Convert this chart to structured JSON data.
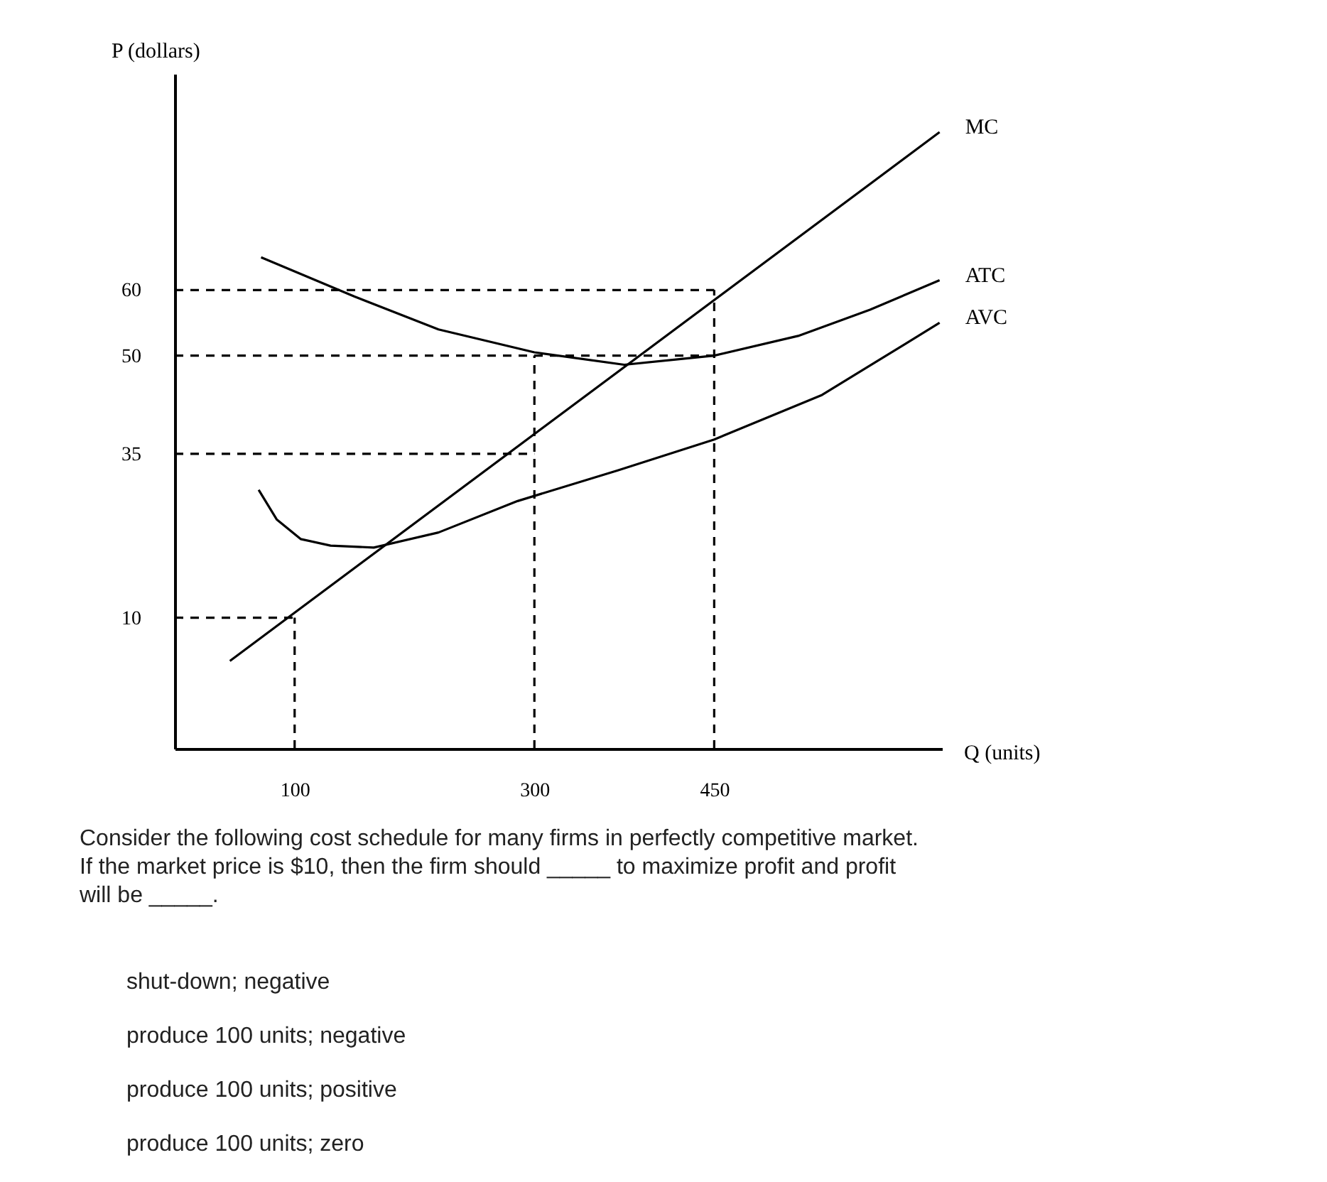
{
  "chart_data": {
    "type": "line",
    "xlabel": "Q (units)",
    "ylabel": "P (dollars)",
    "xlim": [
      0,
      640
    ],
    "ylim": [
      -10,
      93
    ],
    "xticks": [
      100,
      300,
      450
    ],
    "yticks": [
      10,
      35,
      50,
      60
    ],
    "grid": false,
    "marker": "none",
    "series": [
      {
        "name": "MC",
        "color": "#000000",
        "line_style": "solid",
        "x": [
          46,
          638
        ],
        "values": [
          3.4,
          84.1
        ]
      },
      {
        "name": "ATC",
        "color": "#000000",
        "line_style": "solid",
        "x": [
          72,
          150,
          220,
          300,
          375,
          450,
          520,
          580,
          638
        ],
        "values": [
          65,
          59,
          54,
          50.5,
          48.6,
          50,
          53,
          57,
          61.5
        ]
      },
      {
        "name": "AVC",
        "color": "#000000",
        "line_style": "solid",
        "x": [
          70,
          85,
          105,
          130,
          166,
          220,
          286,
          370,
          450,
          540,
          638
        ],
        "values": [
          29.5,
          25,
          22,
          21,
          20.7,
          23,
          27.8,
          32.5,
          37.2,
          44,
          55
        ]
      },
      {
        "color": "#000000",
        "line_style": "dashed",
        "x": [
          0,
          450
        ],
        "values": [
          60,
          60
        ]
      },
      {
        "color": "#000000",
        "line_style": "dashed",
        "x": [
          0,
          450
        ],
        "values": [
          50,
          50
        ]
      },
      {
        "color": "#000000",
        "line_style": "dashed",
        "x": [
          0,
          300
        ],
        "values": [
          35,
          35
        ]
      },
      {
        "color": "#000000",
        "line_style": "dashed",
        "x": [
          0,
          100
        ],
        "values": [
          10,
          10
        ]
      },
      {
        "color": "#000000",
        "line_style": "dashed",
        "x": [
          100,
          100
        ],
        "values": [
          -10,
          10
        ]
      },
      {
        "color": "#000000",
        "line_style": "dashed",
        "x": [
          300,
          300
        ],
        "values": [
          -10,
          50
        ]
      },
      {
        "color": "#000000",
        "line_style": "dashed",
        "x": [
          450,
          450
        ],
        "values": [
          -10,
          60
        ]
      }
    ],
    "annotations": [
      "Consider the following cost schedule for many firms in perfectly competitive market.\nIf the market price is $10, then the firm should _____ to maximize profit and profit\nwill be _____.",
      "shut-down; negative",
      "produce 100 units; negative",
      "produce 100 units; positive",
      "produce 100 units; zero"
    ]
  }
}
